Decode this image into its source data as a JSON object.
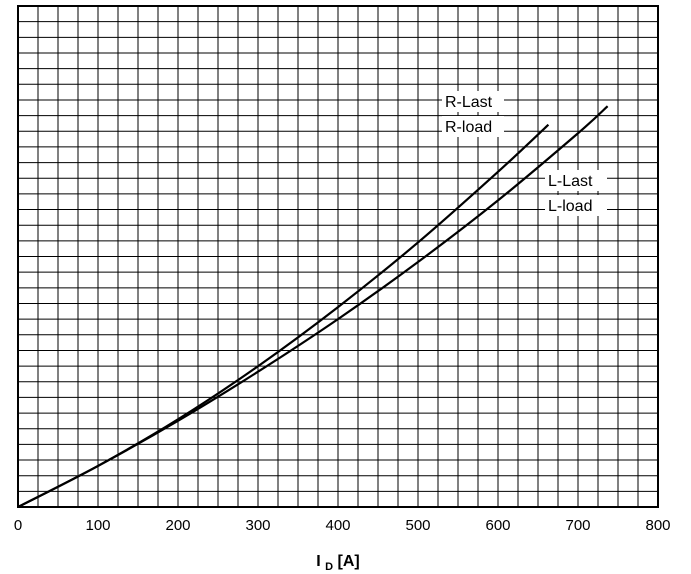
{
  "chart_data": {
    "type": "line",
    "xlabel": {
      "main": "I",
      "sub": "D",
      "unit": "[A]"
    },
    "ylabel": "",
    "xlim": [
      0,
      800
    ],
    "xticks": [
      "0",
      "100",
      "200",
      "300",
      "400",
      "500",
      "600",
      "700",
      "800"
    ],
    "y_grid_divisions": 32,
    "x_grid_divisions": 32,
    "grid": true,
    "series": [
      {
        "name": "R-Last / R-load",
        "labels": [
          "R-Last",
          "R-load"
        ],
        "x": [
          0,
          100,
          200,
          300,
          400,
          500,
          600,
          663
        ],
        "y": [
          0,
          0.082,
          0.175,
          0.281,
          0.399,
          0.528,
          0.669,
          0.763
        ]
      },
      {
        "name": "L-Last / L-load",
        "labels": [
          "L-Last",
          "L-load"
        ],
        "x": [
          0,
          100,
          200,
          300,
          400,
          500,
          600,
          700,
          737
        ],
        "y": [
          0,
          0.082,
          0.172,
          0.27,
          0.375,
          0.489,
          0.612,
          0.746,
          0.8
        ]
      }
    ],
    "ylim": [
      0,
      1
    ]
  }
}
